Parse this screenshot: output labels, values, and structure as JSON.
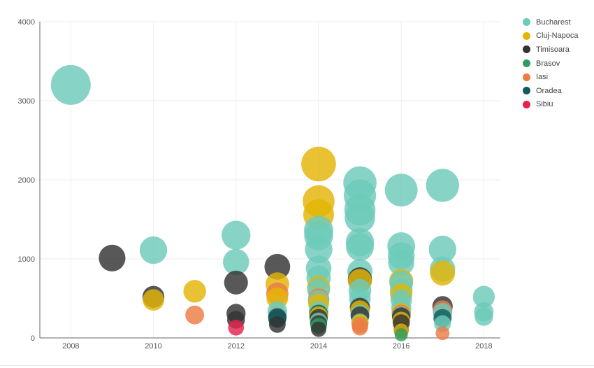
{
  "chart_data": {
    "type": "scatter",
    "title": "",
    "xlabel": "",
    "ylabel": "",
    "xlim": [
      2007.25,
      2018.4
    ],
    "ylim": [
      0,
      4000
    ],
    "x_ticks": [
      "2008",
      "2010",
      "2012",
      "2014",
      "2016",
      "2018"
    ],
    "y_ticks": [
      "0",
      "1000",
      "2000",
      "3000",
      "4000"
    ],
    "grid": true,
    "legend_position": "top-right",
    "bubble_size_encoding": "bubble radius grows with y value",
    "series": [
      {
        "name": "Bucharest",
        "color": "#6ccbb9",
        "points": [
          [
            2008,
            3200
          ],
          [
            2010,
            1110
          ],
          [
            2012,
            1300
          ],
          [
            2012,
            960
          ],
          [
            2013,
            340
          ],
          [
            2013,
            290
          ],
          [
            2014,
            1360
          ],
          [
            2014,
            1290
          ],
          [
            2014,
            1120
          ],
          [
            2014,
            880
          ],
          [
            2014,
            760
          ],
          [
            2014,
            610
          ],
          [
            2014,
            470
          ],
          [
            2014,
            340
          ],
          [
            2014,
            210
          ],
          [
            2015,
            1960
          ],
          [
            2015,
            1800
          ],
          [
            2015,
            1620
          ],
          [
            2015,
            1520
          ],
          [
            2015,
            1210
          ],
          [
            2015,
            1150
          ],
          [
            2015,
            840
          ],
          [
            2015,
            600
          ],
          [
            2015,
            500
          ],
          [
            2015,
            400
          ],
          [
            2015,
            300
          ],
          [
            2015,
            200
          ],
          [
            2016,
            1870
          ],
          [
            2016,
            1160
          ],
          [
            2016,
            1040
          ],
          [
            2016,
            950
          ],
          [
            2016,
            700
          ],
          [
            2016,
            600
          ],
          [
            2016,
            480
          ],
          [
            2016,
            380
          ],
          [
            2016,
            280
          ],
          [
            2017,
            1930
          ],
          [
            2017,
            1120
          ],
          [
            2017,
            870
          ],
          [
            2017,
            320
          ],
          [
            2017,
            180
          ],
          [
            2018,
            520
          ],
          [
            2018,
            330
          ],
          [
            2018,
            270
          ]
        ]
      },
      {
        "name": "Cluj-Napoca",
        "color": "#e3b505",
        "points": [
          [
            2010,
            480
          ],
          [
            2011,
            590
          ],
          [
            2013,
            680
          ],
          [
            2013,
            500
          ],
          [
            2014,
            2200
          ],
          [
            2014,
            1730
          ],
          [
            2014,
            1560
          ],
          [
            2014,
            640
          ],
          [
            2014,
            430
          ],
          [
            2014,
            280
          ],
          [
            2015,
            720
          ],
          [
            2015,
            350
          ],
          [
            2015,
            190
          ],
          [
            2016,
            720
          ],
          [
            2016,
            550
          ],
          [
            2016,
            320
          ],
          [
            2016,
            220
          ],
          [
            2016,
            90
          ],
          [
            2017,
            820
          ]
        ]
      },
      {
        "name": "Timisoara",
        "color": "#333333",
        "points": [
          [
            2009,
            1010
          ],
          [
            2010,
            520
          ],
          [
            2012,
            700
          ],
          [
            2012,
            310
          ],
          [
            2012,
            230
          ],
          [
            2013,
            900
          ],
          [
            2013,
            260
          ],
          [
            2013,
            170
          ],
          [
            2014,
            250
          ],
          [
            2014,
            180
          ],
          [
            2014,
            110
          ],
          [
            2015,
            740
          ],
          [
            2015,
            380
          ],
          [
            2015,
            280
          ],
          [
            2016,
            270
          ],
          [
            2016,
            190
          ],
          [
            2016,
            100
          ],
          [
            2017,
            400
          ]
        ]
      },
      {
        "name": "Brasov",
        "color": "#2e9e5b",
        "points": [
          [
            2014,
            150
          ],
          [
            2016,
            40
          ]
        ]
      },
      {
        "name": "Iasi",
        "color": "#eb7d45",
        "points": [
          [
            2011,
            290
          ],
          [
            2013,
            560
          ],
          [
            2014,
            490
          ],
          [
            2015,
            160
          ],
          [
            2015,
            130
          ],
          [
            2016,
            300
          ],
          [
            2017,
            350
          ],
          [
            2017,
            60
          ]
        ]
      },
      {
        "name": "Oradea",
        "color": "#0f5b5e",
        "points": [
          [
            2013,
            240
          ],
          [
            2014,
            300
          ],
          [
            2017,
            250
          ]
        ]
      },
      {
        "name": "Sibiu",
        "color": "#e3234e",
        "points": [
          [
            2012,
            130
          ]
        ]
      }
    ]
  }
}
